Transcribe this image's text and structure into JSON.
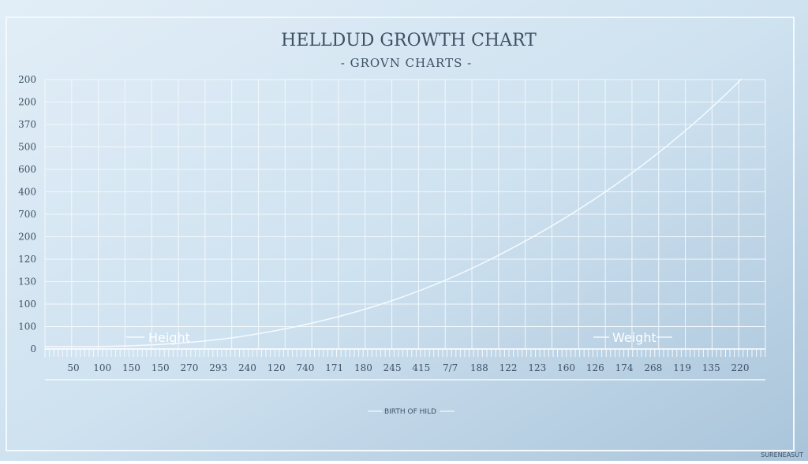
{
  "header": {
    "title": "HELLDUD GROWTH CHART",
    "subtitle": "- GROVN CHARTS -"
  },
  "y_labels": [
    "200",
    "200",
    "370",
    "500",
    "600",
    "400",
    "700",
    "200",
    "120",
    "130",
    "100",
    "100",
    "0"
  ],
  "x_labels": [
    "50",
    "100",
    "150",
    "150",
    "270",
    "293",
    "240",
    "120",
    "740",
    "171",
    "180",
    "245",
    "415",
    "7/7",
    "188",
    "122",
    "123",
    "160",
    "126",
    "174",
    "268",
    "119",
    "135",
    "220"
  ],
  "legend": {
    "left": "Height",
    "right": "Weight"
  },
  "x_axis_title": "BIRTH OF HILD",
  "corner": "SURENEASUT"
}
